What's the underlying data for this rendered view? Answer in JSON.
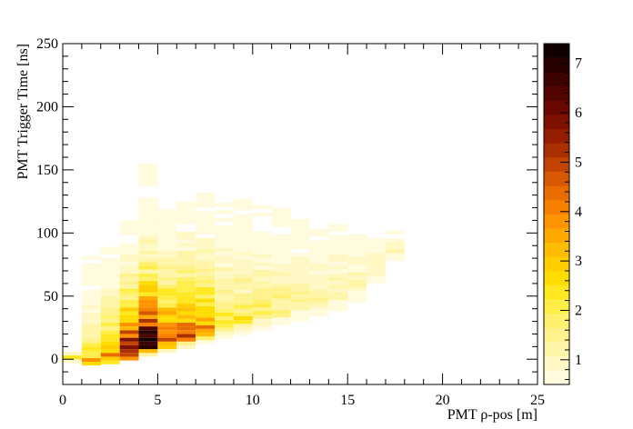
{
  "chart_data": {
    "type": "heatmap",
    "xlabel": "PMT ρ-pos [m]",
    "ylabel": "PMT Trigger Time [ns]",
    "xlim": [
      0,
      25
    ],
    "ylim": [
      -20,
      250
    ],
    "x_ticks": [
      "0",
      "5",
      "10",
      "15",
      "20",
      "25"
    ],
    "y_ticks": [
      "0",
      "50",
      "100",
      "150",
      "200",
      "250"
    ],
    "x_tick_values": [
      0,
      5,
      10,
      15,
      20,
      25
    ],
    "y_tick_values": [
      0,
      50,
      100,
      150,
      200,
      250
    ],
    "colorbar": {
      "range": [
        0.5,
        7.4
      ],
      "ticks": [
        "1",
        "2",
        "3",
        "4",
        "5",
        "6",
        "7"
      ],
      "tick_values": [
        1,
        2,
        3,
        4,
        5,
        6,
        7
      ],
      "palette": [
        "#fffbdc",
        "#fff8c4",
        "#fff5a8",
        "#fff28c",
        "#fff06e",
        "#ffee48",
        "#ffe820",
        "#ffdc00",
        "#ffcd00",
        "#ffbc00",
        "#ffa800",
        "#ff9400",
        "#f88000",
        "#e86c00",
        "#d65800",
        "#c24400",
        "#ab3000",
        "#951e00",
        "#7e1000",
        "#680800",
        "#520500",
        "#3c0300",
        "#260100",
        "#120000"
      ]
    },
    "x_bin_width": 1,
    "y_bin_width": 3,
    "columns": [
      {
        "x": 0,
        "ymin": -3,
        "ymax": 8,
        "peak": 2.0,
        "mode": 1,
        "spread": 8,
        "scale": 8
      },
      {
        "x": 1,
        "ymin": -5,
        "ymax": 82,
        "peak": 3.0,
        "mode": -1,
        "spread": 14,
        "scale": 30
      },
      {
        "x": 2,
        "ymin": -4,
        "ymax": 93,
        "peak": 4.0,
        "mode": 2,
        "spread": 16,
        "scale": 32
      },
      {
        "x": 3,
        "ymin": -1,
        "ymax": 110,
        "peak": 6.6,
        "mode": 6,
        "spread": 18,
        "scale": 36
      },
      {
        "x": 4,
        "ymin": 2,
        "ymax": 153,
        "peak": 7.4,
        "mode": 12,
        "spread": 18,
        "scale": 40
      },
      {
        "x": 5,
        "ymin": 5,
        "ymax": 118,
        "peak": 4.8,
        "mode": 15,
        "spread": 20,
        "scale": 42
      },
      {
        "x": 6,
        "ymin": 8,
        "ymax": 125,
        "peak": 4.3,
        "mode": 19,
        "spread": 22,
        "scale": 44
      },
      {
        "x": 7,
        "ymin": 12,
        "ymax": 135,
        "peak": 3.7,
        "mode": 24,
        "spread": 22,
        "scale": 46
      },
      {
        "x": 8,
        "ymin": 16,
        "ymax": 122,
        "peak": 2.4,
        "mode": 28,
        "spread": 24,
        "scale": 48
      },
      {
        "x": 9,
        "ymin": 19,
        "ymax": 125,
        "peak": 2.2,
        "mode": 32,
        "spread": 24,
        "scale": 48
      },
      {
        "x": 10,
        "ymin": 23,
        "ymax": 120,
        "peak": 1.9,
        "mode": 36,
        "spread": 26,
        "scale": 50
      },
      {
        "x": 11,
        "ymin": 27,
        "ymax": 118,
        "peak": 1.7,
        "mode": 40,
        "spread": 26,
        "scale": 50
      },
      {
        "x": 12,
        "ymin": 30,
        "ymax": 112,
        "peak": 1.5,
        "mode": 44,
        "spread": 26,
        "scale": 48
      },
      {
        "x": 13,
        "ymin": 34,
        "ymax": 108,
        "peak": 1.4,
        "mode": 48,
        "spread": 26,
        "scale": 46
      },
      {
        "x": 14,
        "ymin": 38,
        "ymax": 106,
        "peak": 1.3,
        "mode": 52,
        "spread": 24,
        "scale": 44
      },
      {
        "x": 15,
        "ymin": 45,
        "ymax": 103,
        "peak": 1.2,
        "mode": 58,
        "spread": 22,
        "scale": 40
      },
      {
        "x": 16,
        "ymin": 60,
        "ymax": 102,
        "peak": 1.1,
        "mode": 70,
        "spread": 20,
        "scale": 36
      },
      {
        "x": 17,
        "ymin": 78,
        "ymax": 100,
        "peak": 1.0,
        "mode": 86,
        "spread": 14,
        "scale": 30
      }
    ]
  }
}
